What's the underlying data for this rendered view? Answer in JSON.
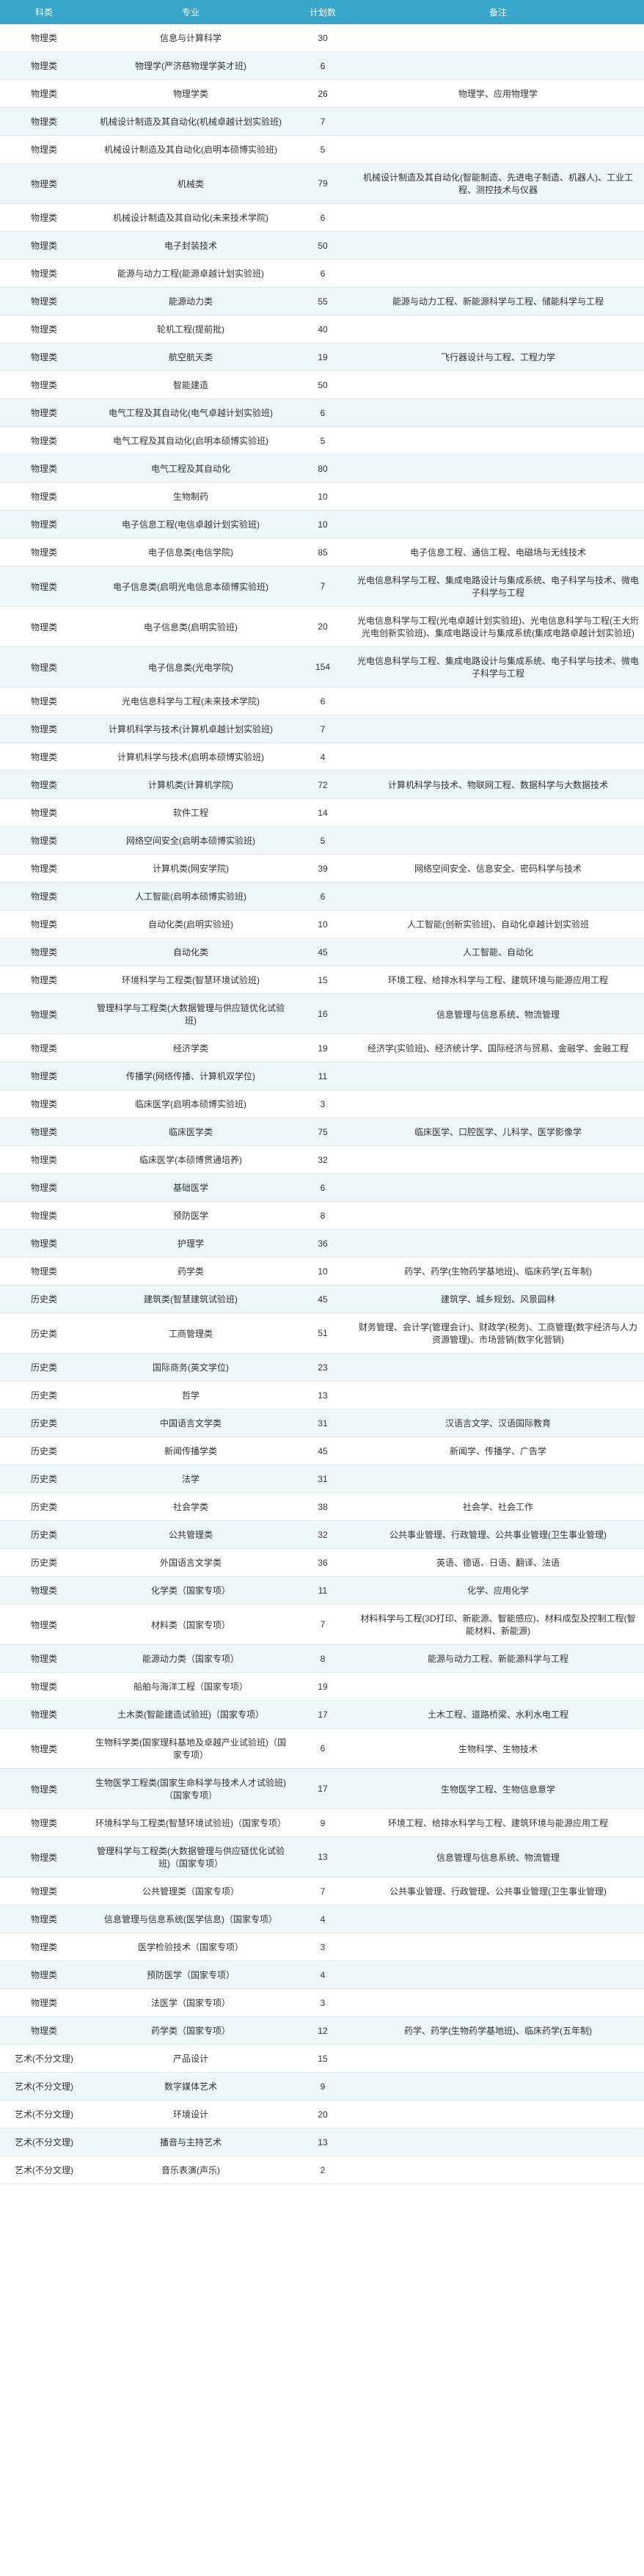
{
  "headers": [
    "科类",
    "专业",
    "计划数",
    "备注"
  ],
  "rows": [
    [
      "物理类",
      "信息与计算科学",
      "30",
      ""
    ],
    [
      "物理类",
      "物理学(严济慈物理学英才班)",
      "6",
      ""
    ],
    [
      "物理类",
      "物理学类",
      "26",
      "物理学、应用物理学"
    ],
    [
      "物理类",
      "机械设计制造及其自动化(机械卓越计划实验班)",
      "7",
      ""
    ],
    [
      "物理类",
      "机械设计制造及其自动化(启明本硕博实验班)",
      "5",
      ""
    ],
    [
      "物理类",
      "机械类",
      "79",
      "机械设计制造及其自动化(智能制造、先进电子制造、机器人)、工业工程、测控技术与仪器"
    ],
    [
      "物理类",
      "机械设计制造及其自动化(未来技术学院)",
      "6",
      ""
    ],
    [
      "物理类",
      "电子封装技术",
      "50",
      ""
    ],
    [
      "物理类",
      "能源与动力工程(能源卓越计划实验班)",
      "6",
      ""
    ],
    [
      "物理类",
      "能源动力类",
      "55",
      "能源与动力工程、新能源科学与工程、储能科学与工程"
    ],
    [
      "物理类",
      "轮机工程(提前批)",
      "40",
      ""
    ],
    [
      "物理类",
      "航空航天类",
      "19",
      "飞行器设计与工程、工程力学"
    ],
    [
      "物理类",
      "智能建造",
      "50",
      ""
    ],
    [
      "物理类",
      "电气工程及其自动化(电气卓越计划实验班)",
      "6",
      ""
    ],
    [
      "物理类",
      "电气工程及其自动化(启明本硕博实验班)",
      "5",
      ""
    ],
    [
      "物理类",
      "电气工程及其自动化",
      "80",
      ""
    ],
    [
      "物理类",
      "生物制药",
      "10",
      ""
    ],
    [
      "物理类",
      "电子信息工程(电信卓越计划实验班)",
      "10",
      ""
    ],
    [
      "物理类",
      "电子信息类(电信学院)",
      "85",
      "电子信息工程、通信工程、电磁场与无线技术"
    ],
    [
      "物理类",
      "电子信息类(启明光电信息本硕博实验班)",
      "7",
      "光电信息科学与工程、集成电路设计与集成系统、电子科学与技术、微电子科学与工程"
    ],
    [
      "物理类",
      "电子信息类(启明实验班)",
      "20",
      "光电信息科学与工程(光电卓越计划实验班)、光电信息科学与工程(王大珩光电创新实验班)、集成电路设计与集成系统(集成电路卓越计划实验班)"
    ],
    [
      "物理类",
      "电子信息类(光电学院)",
      "154",
      "光电信息科学与工程、集成电路设计与集成系统、电子科学与技术、微电子科学与工程"
    ],
    [
      "物理类",
      "光电信息科学与工程(未来技术学院)",
      "6",
      ""
    ],
    [
      "物理类",
      "计算机科学与技术(计算机卓越计划实验班)",
      "7",
      ""
    ],
    [
      "物理类",
      "计算机科学与技术(启明本硕博实验班)",
      "4",
      ""
    ],
    [
      "物理类",
      "计算机类(计算机学院)",
      "72",
      "计算机科学与技术、物联网工程、数据科学与大数据技术"
    ],
    [
      "物理类",
      "软件工程",
      "14",
      ""
    ],
    [
      "物理类",
      "网络空间安全(启明本硕博实验班)",
      "5",
      ""
    ],
    [
      "物理类",
      "计算机类(网安学院)",
      "39",
      "网络空间安全、信息安全、密码科学与技术"
    ],
    [
      "物理类",
      "人工智能(启明本硕博实验班)",
      "6",
      ""
    ],
    [
      "物理类",
      "自动化类(启明实验班)",
      "10",
      "人工智能(创新实验班)、自动化卓越计划实验班"
    ],
    [
      "物理类",
      "自动化类",
      "45",
      "人工智能、自动化"
    ],
    [
      "物理类",
      "环境科学与工程类(智慧环境试验班)",
      "15",
      "环境工程、给排水科学与工程、建筑环境与能源应用工程"
    ],
    [
      "物理类",
      "管理科学与工程类(大数据管理与供应链优化试验班)",
      "16",
      "信息管理与信息系统、物流管理"
    ],
    [
      "物理类",
      "经济学类",
      "19",
      "经济学(实验班)、经济统计学、国际经济与贸易、金融学、金融工程"
    ],
    [
      "物理类",
      "传播学(网络传播、计算机双学位)",
      "11",
      ""
    ],
    [
      "物理类",
      "临床医学(启明本硕博实验班)",
      "3",
      ""
    ],
    [
      "物理类",
      "临床医学类",
      "75",
      "临床医学、口腔医学、儿科学、医学影像学"
    ],
    [
      "物理类",
      "临床医学(本硕博贯通培养)",
      "32",
      ""
    ],
    [
      "物理类",
      "基础医学",
      "6",
      ""
    ],
    [
      "物理类",
      "预防医学",
      "8",
      ""
    ],
    [
      "物理类",
      "护理学",
      "36",
      ""
    ],
    [
      "物理类",
      "药学类",
      "10",
      "药学、药学(生物药学基地班)、临床药学(五年制)"
    ],
    [
      "历史类",
      "建筑类(智慧建筑试验班)",
      "45",
      "建筑学、城乡规划、风景园林"
    ],
    [
      "历史类",
      "工商管理类",
      "51",
      "财务管理、会计学(管理会计)、财政学(税务)、工商管理(数字经济与人力资源管理)、市场营销(数字化营销)"
    ],
    [
      "历史类",
      "国际商务(英文学位)",
      "23",
      ""
    ],
    [
      "历史类",
      "哲学",
      "13",
      ""
    ],
    [
      "历史类",
      "中国语言文学类",
      "31",
      "汉语言文学、汉语国际教育"
    ],
    [
      "历史类",
      "新闻传播学类",
      "45",
      "新闻学、传播学、广告学"
    ],
    [
      "历史类",
      "法学",
      "31",
      ""
    ],
    [
      "历史类",
      "社会学类",
      "38",
      "社会学、社会工作"
    ],
    [
      "历史类",
      "公共管理类",
      "32",
      "公共事业管理、行政管理、公共事业管理(卫生事业管理)"
    ],
    [
      "历史类",
      "外国语言文学类",
      "36",
      "英语、德语、日语、翻译、法语"
    ],
    [
      "物理类",
      "化学类（国家专项）",
      "11",
      "化学、应用化学"
    ],
    [
      "物理类",
      "材料类（国家专项）",
      "7",
      "材料科学与工程(3D打印、新能源、智能感应)、材料成型及控制工程(智能材料、新能源)"
    ],
    [
      "物理类",
      "能源动力类（国家专项）",
      "8",
      "能源与动力工程、新能源科学与工程"
    ],
    [
      "物理类",
      "船舶与海洋工程（国家专项）",
      "19",
      ""
    ],
    [
      "物理类",
      "土木类(智能建造试验班)（国家专项）",
      "17",
      "土木工程、道路桥梁、水利水电工程"
    ],
    [
      "物理类",
      "生物科学类(国家理科基地及卓越产业试验班)（国家专项）",
      "6",
      "生物科学、生物技术"
    ],
    [
      "物理类",
      "生物医学工程类(国家生命科学与技术人才试验班)（国家专项）",
      "17",
      "生物医学工程、生物信息意学"
    ],
    [
      "物理类",
      "环境科学与工程类(智慧环境试验班)（国家专项）",
      "9",
      "环境工程、给排水科学与工程、建筑环境与能源应用工程"
    ],
    [
      "物理类",
      "管理科学与工程类(大数据管理与供应链优化试验班)（国家专项）",
      "13",
      "信息管理与信息系统、物流管理"
    ],
    [
      "物理类",
      "公共管理类（国家专项）",
      "7",
      "公共事业管理、行政管理、公共事业管理(卫生事业管理)"
    ],
    [
      "物理类",
      "信息管理与信息系统(医学信息)（国家专项）",
      "4",
      ""
    ],
    [
      "物理类",
      "医学检验技术（国家专项）",
      "3",
      ""
    ],
    [
      "物理类",
      "预防医学（国家专项）",
      "4",
      ""
    ],
    [
      "物理类",
      "法医学（国家专项）",
      "3",
      ""
    ],
    [
      "物理类",
      "药学类（国家专项）",
      "12",
      "药学、药学(生物药学基地班)、临床药学(五年制)"
    ],
    [
      "艺术(不分文理)",
      "产品设计",
      "15",
      ""
    ],
    [
      "艺术(不分文理)",
      "数字媒体艺术",
      "9",
      ""
    ],
    [
      "艺术(不分文理)",
      "环境设计",
      "20",
      ""
    ],
    [
      "艺术(不分文理)",
      "播音与主持艺术",
      "13",
      ""
    ],
    [
      "艺术(不分文理)",
      "音乐表演(声乐)",
      "2",
      ""
    ]
  ]
}
